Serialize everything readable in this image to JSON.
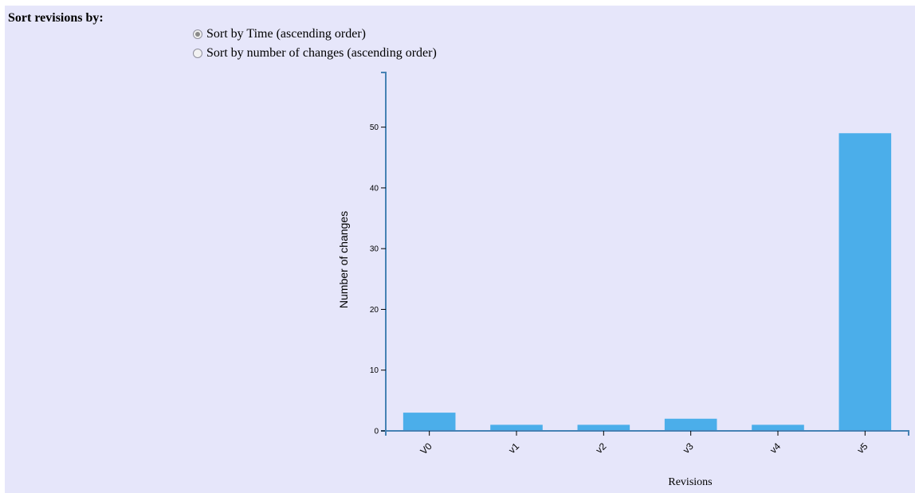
{
  "sort_panel": {
    "heading": "Sort revisions by:",
    "options": [
      {
        "label": "Sort by Time (ascending order)",
        "checked": true
      },
      {
        "label": "Sort by number of changes (ascending order)",
        "checked": false
      }
    ]
  },
  "colors": {
    "background": "#e6e6fa",
    "bar": "#4baeea",
    "axis": "#4682b4"
  },
  "chart_data": {
    "type": "bar",
    "categories": [
      "V0",
      "v1",
      "v2",
      "v3",
      "v4",
      "v5"
    ],
    "values": [
      3,
      1,
      1,
      2,
      1,
      49
    ],
    "xlabel": "Revisions",
    "ylabel": "Number of changes",
    "ylim": [
      0,
      59
    ],
    "yticks": [
      0,
      10,
      20,
      30,
      40,
      50
    ],
    "grid": false
  }
}
